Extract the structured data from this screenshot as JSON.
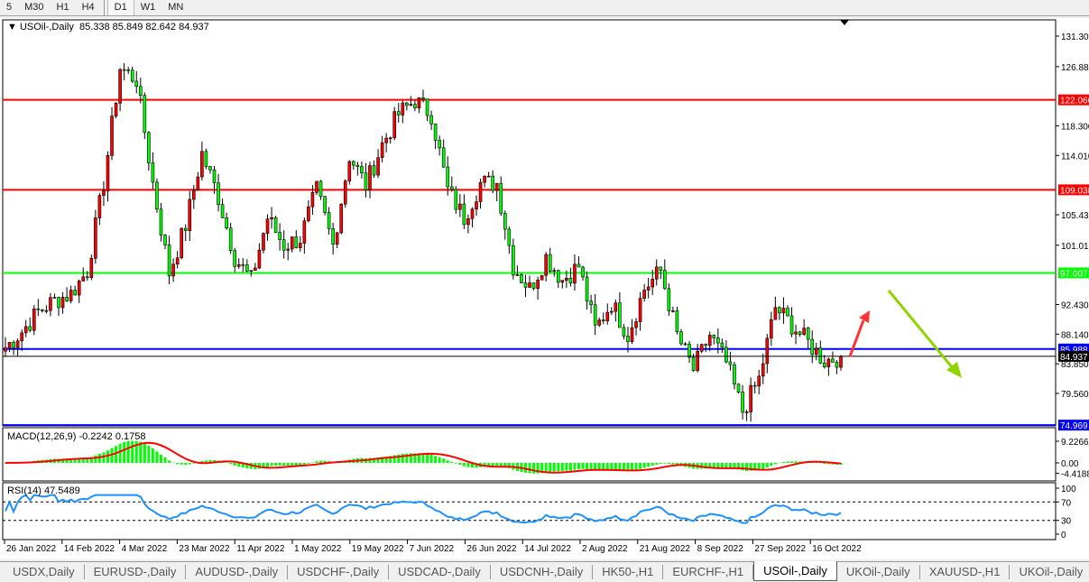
{
  "toolbar": {
    "timeframes": [
      {
        "label": "5"
      },
      {
        "label": "M30"
      },
      {
        "label": "H1"
      },
      {
        "label": "H4"
      },
      {
        "label": "D1",
        "active": true
      },
      {
        "label": "W1"
      },
      {
        "label": "MN"
      }
    ]
  },
  "chart": {
    "symbol_label": "USOil-,Daily",
    "ohlc_label": "85.338 85.849 82.642 84.937",
    "last_price": "84.937",
    "bull_color": "#ff0000",
    "bear_color": "#00ff00",
    "price_axis": {
      "max": 131.3,
      "min": 74.6,
      "ticks": [
        "131.300",
        "126.880",
        "118.300",
        "114.010",
        "105.430",
        "101.010",
        "92.430",
        "88.140",
        "83.850",
        "79.560"
      ]
    },
    "levels": [
      {
        "price": 122.066,
        "label": "122.066",
        "color": "#ff0000"
      },
      {
        "price": 109.038,
        "label": "109.038",
        "color": "#ff0000"
      },
      {
        "price": 97.007,
        "label": "97.007",
        "color": "#00ff00"
      },
      {
        "price": 85.988,
        "label": "85.988",
        "color": "#0000ff"
      },
      {
        "price": 74.969,
        "label": "74.969",
        "color": "#0000ff"
      }
    ],
    "approx_close_path": [
      86.2,
      88.5,
      91.4,
      93,
      94,
      97.3,
      110,
      126.7,
      125,
      110,
      97,
      103.9,
      114.3,
      108,
      99.3,
      96,
      105,
      101,
      102,
      109,
      101,
      114,
      109.7,
      115.6,
      120,
      122,
      120,
      109,
      105,
      110,
      110,
      98,
      94.7,
      99.3,
      96,
      98,
      88.8,
      92.7,
      88,
      94.7,
      97.3,
      88,
      83,
      88,
      84,
      77,
      81.6,
      92,
      89.5,
      86.9,
      84.3,
      84.937
    ],
    "date_labels": [
      "26 Jan 2022",
      "14 Feb 2022",
      "4 Mar 2022",
      "23 Mar 2022",
      "11 Apr 2022",
      "1 May 2022",
      "19 May 2022",
      "7 Jun 2022",
      "26 Jun 2022",
      "14 Jul 2022",
      "2 Aug 2022",
      "21 Aug 2022",
      "8 Sep 2022",
      "27 Sep 2022",
      "16 Oct 2022"
    ],
    "arrows": [
      {
        "direction": "up",
        "color": "#ff3333"
      },
      {
        "direction": "down",
        "color": "#8fd400"
      }
    ]
  },
  "macd": {
    "label": "MACD(12,26,9) -0.2242 0.1758",
    "ticks": [
      "9.2266",
      "0.00",
      "-4.4188"
    ],
    "hist_color": "#00ff00",
    "signal_color": "#ff0000"
  },
  "rsi": {
    "label": "RSI(14) 47.5489",
    "ticks": [
      "100",
      "70",
      "30",
      "0"
    ],
    "line_color": "#1e90ff",
    "levels": [
      70,
      30
    ]
  },
  "tabs": [
    {
      "label": "USDX,Daily"
    },
    {
      "label": "EURUSD-,Daily"
    },
    {
      "label": "AUDUSD-,Daily"
    },
    {
      "label": "USDCHF-,Daily"
    },
    {
      "label": "USDCAD-,Daily"
    },
    {
      "label": "USDCNH-,Daily"
    },
    {
      "label": "HK50-,H1"
    },
    {
      "label": "EURCHF-,H1"
    },
    {
      "label": "USOil-,Daily",
      "active": true
    },
    {
      "label": "UKOil-,Daily"
    },
    {
      "label": "XAUUSD-,H1"
    },
    {
      "label": "UKOil-,Daily"
    }
  ]
}
